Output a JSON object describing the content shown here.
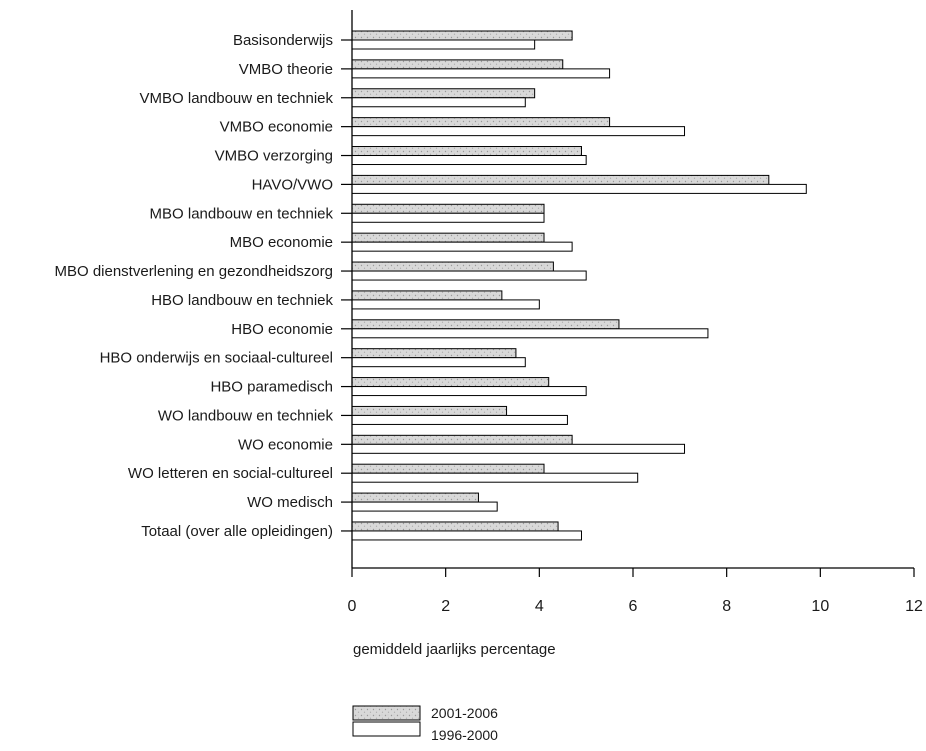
{
  "chart_data": {
    "type": "bar",
    "orientation": "horizontal",
    "categories": [
      "Basisonderwijs",
      "VMBO theorie",
      "VMBO landbouw en techniek",
      "VMBO economie",
      "VMBO verzorging",
      "HAVO/VWO",
      "MBO landbouw en techniek",
      "MBO economie",
      "MBO dienstverlening en gezondheidszorg",
      "HBO landbouw en techniek",
      "HBO economie",
      "HBO onderwijs en sociaal-cultureel",
      "HBO paramedisch",
      "WO landbouw en techniek",
      "WO economie",
      "WO letteren en social-cultureel",
      "WO medisch",
      "Totaal (over alle opleidingen)"
    ],
    "series": [
      {
        "name": "2001-2006",
        "color": "#d9d9d9",
        "values": [
          4.7,
          4.5,
          3.9,
          5.5,
          4.9,
          8.9,
          4.1,
          4.1,
          4.3,
          3.2,
          5.7,
          3.5,
          4.2,
          3.3,
          4.7,
          4.1,
          2.7,
          4.4
        ]
      },
      {
        "name": "1996-2000",
        "color": "#ffffff",
        "values": [
          3.9,
          5.5,
          3.7,
          7.1,
          5.0,
          9.7,
          4.1,
          4.7,
          5.0,
          4.0,
          7.6,
          3.7,
          5.0,
          4.6,
          7.1,
          6.1,
          3.1,
          4.9
        ]
      }
    ],
    "xlabel": "gemiddeld jaarlijks percentage",
    "ylabel": "",
    "xlim": [
      0,
      12
    ],
    "xticks": [
      0,
      2,
      4,
      6,
      8,
      10,
      12
    ],
    "grid": false,
    "legend": "bottom"
  }
}
